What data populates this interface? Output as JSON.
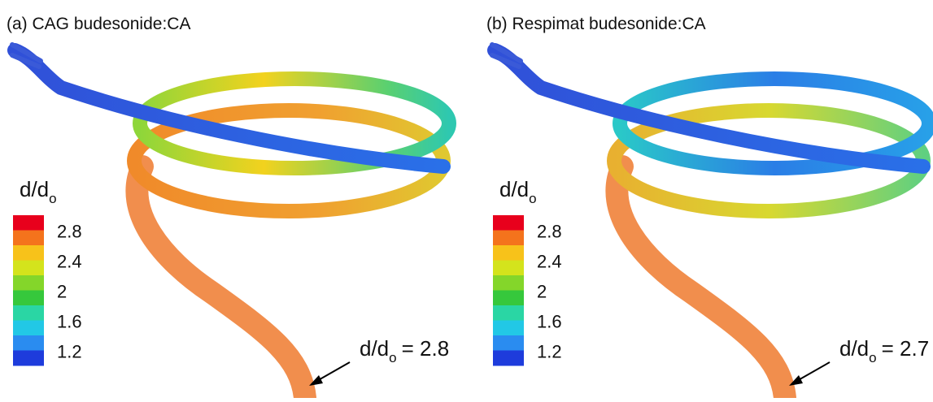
{
  "panels": [
    {
      "title": "(a) CAG budesonide:CA",
      "colorbar": {
        "label": {
          "main": "d/d",
          "sub": "o"
        },
        "colors": [
          "#e8001c",
          "#f4731c",
          "#f7c21a",
          "#d4e31c",
          "#84d62a",
          "#36c83c",
          "#2ad6a4",
          "#22c8e6",
          "#2a8cf0",
          "#1e3cdc"
        ],
        "ticks": [
          "2.8",
          "2.4",
          "2",
          "1.6",
          "1.2"
        ]
      },
      "annotation": {
        "main": "d/d",
        "sub": "o",
        "rest": "= 2.8"
      }
    },
    {
      "title": "(b) Respimat budesonide:CA",
      "colorbar": {
        "label": {
          "main": "d/d",
          "sub": "o"
        },
        "colors": [
          "#e8001c",
          "#f4731c",
          "#f7c21a",
          "#d4e31c",
          "#84d62a",
          "#36c83c",
          "#2ad6a4",
          "#22c8e6",
          "#2a8cf0",
          "#1e3cdc"
        ],
        "ticks": [
          "2.8",
          "2.4",
          "2",
          "1.6",
          "1.2"
        ]
      },
      "annotation": {
        "main": "d/d",
        "sub": "o",
        "rest": "= 2.7"
      }
    }
  ]
}
